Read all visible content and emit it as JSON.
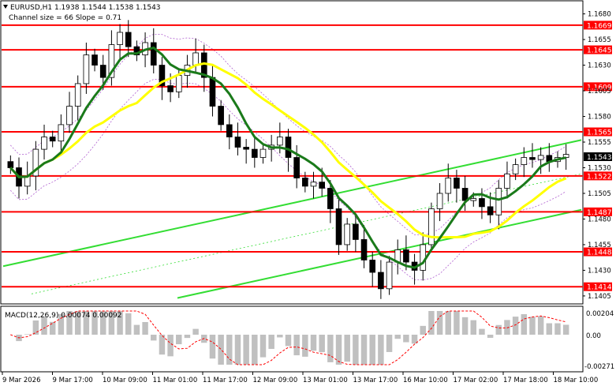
{
  "header": {
    "symbol_line": "EURUSD,H1  1.1938 1.1544 1.1538 1.1543",
    "channel_line": "Channel size = 66 Slope = 0.71"
  },
  "macd": {
    "label": "MACD(12,26,9) 0.00074 0.00092",
    "ticks": [
      "0.00204",
      "0.00",
      "-0.00271"
    ]
  },
  "price_axis": {
    "ticks": [
      "1.1680",
      "1.1655",
      "1.1630",
      "1.1605",
      "1.1580",
      "1.1555",
      "1.1530",
      "1.1505",
      "1.1480",
      "1.1455",
      "1.1430",
      "1.1405"
    ],
    "current_price": "1.1543"
  },
  "levels": [
    {
      "label": "1.1669",
      "price": 1.1669
    },
    {
      "label": "1.1645",
      "price": 1.1645
    },
    {
      "label": "1.1609",
      "price": 1.1609
    },
    {
      "label": "1.1565",
      "price": 1.1565
    },
    {
      "label": "1.1522",
      "price": 1.1522
    },
    {
      "label": "1.1487",
      "price": 1.1487
    },
    {
      "label": "1.1448",
      "price": 1.1448
    },
    {
      "label": "1.1414",
      "price": 1.1414
    }
  ],
  "time_axis": [
    "9 Mar 2026",
    "9 Mar 17:00",
    "10 Mar 09:00",
    "11 Mar 01:00",
    "11 Mar 17:00",
    "12 Mar 09:00",
    "13 Mar 01:00",
    "13 Mar 17:00",
    "16 Mar 10:00",
    "17 Mar 02:00",
    "17 Mar 18:00",
    "18 Mar 10:00"
  ],
  "colors": {
    "level": "#ff0000",
    "level_label_bg": "#ff0000",
    "ma_fast": "#1a7a1a",
    "ma_slow": "#ffff00",
    "channel": "#33dd33",
    "bollinger": "#b060d0",
    "candles": "#000000",
    "macd_hist": "#c0c0c0",
    "macd_signal": "#ff0000"
  },
  "chart_data": {
    "type": "candlestick",
    "symbol": "EURUSD",
    "timeframe": "H1",
    "ylim": [
      1.1398,
      1.1692
    ],
    "close": [
      1.153,
      1.1512,
      1.1522,
      1.1548,
      1.156,
      1.1556,
      1.1572,
      1.159,
      1.1612,
      1.164,
      1.163,
      1.1618,
      1.165,
      1.1662,
      1.1648,
      1.164,
      1.1652,
      1.163,
      1.161,
      1.1604,
      1.162,
      1.163,
      1.1642,
      1.1618,
      1.159,
      1.1572,
      1.156,
      1.155,
      1.1548,
      1.154,
      1.1548,
      1.1552,
      1.156,
      1.154,
      1.152,
      1.1512,
      1.1516,
      1.151,
      1.149,
      1.1455,
      1.1475,
      1.146,
      1.144,
      1.1428,
      1.1412,
      1.1438,
      1.145,
      1.1438,
      1.143,
      1.1455,
      1.149,
      1.1505,
      1.152,
      1.151,
      1.1498,
      1.15,
      1.1492,
      1.1484,
      1.151,
      1.1524,
      1.1533,
      1.154,
      1.1538,
      1.1542,
      1.1536,
      1.154,
      1.1543
    ]
  }
}
